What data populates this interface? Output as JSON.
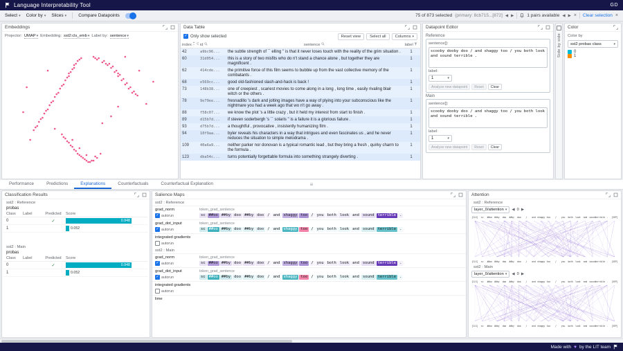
{
  "header": {
    "title": "Language Interpretability Tool",
    "user": "GD"
  },
  "toolbar": {
    "select": "Select",
    "color_by": "Color by",
    "slices": "Slices",
    "compare": "Compare Datapoints",
    "selected_status": "75 of 873 selected",
    "primary_status": "(primary: 8cb715...[872]",
    "pairs_status": "1 pairs available",
    "clear_selection": "Clear selection"
  },
  "embeddings": {
    "title": "Embeddings",
    "projector_label": "Projector:",
    "projector": "UMAP",
    "embedding_label": "Embedding:",
    "embedding": "sst2:cls_emb",
    "label_by_label": "Label by:",
    "label_by": "sentence",
    "point_color": "#e91e63",
    "points": [
      [
        44,
        14
      ],
      [
        42,
        17
      ],
      [
        41,
        20
      ],
      [
        39,
        23
      ],
      [
        38,
        26
      ],
      [
        36,
        29
      ],
      [
        35,
        32
      ],
      [
        33,
        35
      ],
      [
        32,
        38
      ],
      [
        30,
        41
      ],
      [
        29,
        44
      ],
      [
        27,
        47
      ],
      [
        26,
        50
      ],
      [
        24,
        53
      ],
      [
        23,
        56
      ],
      [
        21,
        59
      ],
      [
        20,
        62
      ],
      [
        18,
        65
      ],
      [
        43,
        15
      ],
      [
        40,
        21
      ],
      [
        37,
        27
      ],
      [
        34,
        33
      ],
      [
        31,
        39
      ],
      [
        28,
        45
      ],
      [
        25,
        51
      ],
      [
        22,
        57
      ],
      [
        19,
        63
      ],
      [
        45,
        13
      ],
      [
        41,
        18
      ],
      [
        38,
        24
      ],
      [
        52,
        12
      ],
      [
        55,
        13
      ],
      [
        58,
        15
      ],
      [
        61,
        17
      ],
      [
        63,
        19
      ],
      [
        65,
        22
      ],
      [
        67,
        25
      ],
      [
        69,
        28
      ],
      [
        71,
        31
      ],
      [
        73,
        34
      ],
      [
        75,
        37
      ],
      [
        77,
        40
      ],
      [
        54,
        14
      ],
      [
        57,
        16
      ],
      [
        60,
        18
      ],
      [
        62,
        20
      ],
      [
        64,
        23
      ],
      [
        66,
        26
      ],
      [
        68,
        29
      ],
      [
        70,
        32
      ],
      [
        72,
        35
      ],
      [
        74,
        38
      ],
      [
        53,
        13
      ],
      [
        59,
        17
      ],
      [
        76,
        39
      ],
      [
        66,
        24
      ],
      [
        34,
        68
      ],
      [
        36,
        71
      ],
      [
        38,
        74
      ],
      [
        40,
        77
      ],
      [
        42,
        80
      ],
      [
        44,
        83
      ],
      [
        46,
        85
      ],
      [
        48,
        87
      ],
      [
        50,
        88
      ],
      [
        52,
        87
      ],
      [
        54,
        85
      ],
      [
        56,
        82
      ],
      [
        35,
        70
      ],
      [
        37,
        73
      ],
      [
        39,
        76
      ],
      [
        41,
        79
      ],
      [
        43,
        82
      ],
      [
        45,
        84
      ],
      [
        47,
        86
      ],
      [
        49,
        88
      ],
      [
        51,
        87
      ],
      [
        53,
        84
      ],
      [
        40,
        72
      ],
      [
        44,
        78
      ],
      [
        48,
        83
      ],
      [
        14,
        34
      ],
      [
        16,
        72
      ],
      [
        82,
        46
      ],
      [
        62,
        55
      ],
      [
        26,
        22
      ],
      [
        70,
        12
      ],
      [
        12,
        52
      ],
      [
        57,
        60
      ],
      [
        30,
        64
      ],
      [
        66,
        48
      ],
      [
        78,
        22
      ],
      [
        86,
        30
      ]
    ]
  },
  "data_table": {
    "title": "Data Table",
    "only_show_selected": "Only show selected",
    "reset_view": "Reset view",
    "select_all": "Select all",
    "columns": "Columns",
    "headers": [
      "index",
      "id",
      "sentence",
      "label"
    ],
    "rows": [
      [
        "42",
        "a9bc96...",
        "the subtle strength of `` elling '' is that it never loses touch with the reality of the grim situation .",
        "1"
      ],
      [
        "60",
        "31d054...",
        "this is a story of two misfits who do n't stand a chance alone , but together they are magnificent .",
        "1"
      ],
      [
        "62",
        "414cde...",
        "the primitive force of this film seems to bubble up from the vast collective memory of the combatants .",
        "1"
      ],
      [
        "68",
        "e569cc...",
        "good old-fashioned slash-and-hack is back !",
        "1"
      ],
      [
        "73",
        "148b38...",
        "one of creepiest , scariest movies to come along in a long , long time , easily rivaling blair witch or the others .",
        "1"
      ],
      [
        "78",
        "9e79ee...",
        "fresnadillo 's dark and jolting images have a way of plying into your subconscious like the nightmare you had a week ago that wo n't go away .",
        "1"
      ],
      [
        "88",
        "f58c07...",
        "we know the plot 's a little crazy , but it held my interest from start to finish .",
        "1"
      ],
      [
        "89",
        "d15b7d...",
        "if steven soderbergh 's `` solaris '' is a failure it is a glorious failure .",
        "1"
      ],
      [
        "93",
        "d75b7d...",
        "a thoughtful , provocative , insistently humanizing film .",
        "1"
      ],
      [
        "94",
        "10f9aa...",
        "byler reveals his characters in a way that intrigues and even fascinates us , and he never reduces the situation to simple melodrama .",
        "1"
      ],
      [
        "109",
        "40a6a9...",
        "neither parker nor donovan is a typical romantic lead , but they bring a fresh , quirky charm to the formula .",
        "1"
      ],
      [
        "123",
        "dba54c...",
        "turns potentially forgettable formula into something strangely diverting .",
        "1"
      ]
    ]
  },
  "datapoint_editor": {
    "title": "Datapoint Editor",
    "sections": [
      {
        "name": "Reference",
        "sentence_label": "sentence[]:",
        "sentence": "scooby dooby doo / and shaggy too / you both look and sound terrible .",
        "label_label": "label:",
        "label_value": "1",
        "buttons": [
          "Analyze new datapoint",
          "Reset",
          "Clear"
        ]
      },
      {
        "name": "Main",
        "sentence_label": "sentence[]:",
        "sentence": "scooby dooby doo / and shaggy too / you both look and sound terrible .",
        "label_label": "label:",
        "label_value": "1",
        "buttons": [
          "Analyze new datapoint",
          "Reset",
          "Clear"
        ]
      }
    ]
  },
  "side_by_side": {
    "label": "Side by side"
  },
  "color_panel": {
    "title": "Color",
    "color_by_label": "Color by",
    "color_by_value": "sst2 probas class",
    "legend": [
      {
        "label": "0",
        "color": "#00bcd4"
      },
      {
        "label": "1",
        "color": "#fb8c00"
      }
    ]
  },
  "tabs": {
    "items": [
      "Performance",
      "Predictions",
      "Explanations",
      "Counterfactuals",
      "Counterfactual Explanation"
    ],
    "active": "Explanations"
  },
  "classification": {
    "title": "Classification Results",
    "bar_color": "#00acc1",
    "sections": [
      {
        "model": "sst2 : Reference",
        "field": "probas",
        "headers": [
          "Class",
          "Label",
          "Predicted",
          "Score"
        ],
        "rows": [
          {
            "cls": "0",
            "label": "",
            "predicted": true,
            "score": "0.948"
          },
          {
            "cls": "1",
            "label": "",
            "predicted": false,
            "score": "0.052"
          }
        ]
      },
      {
        "model": "sst2 : Main",
        "field": "probas",
        "headers": [
          "Class",
          "Label",
          "Predicted",
          "Score"
        ],
        "rows": [
          {
            "cls": "0",
            "label": "",
            "predicted": true,
            "score": "0.948"
          },
          {
            "cls": "1",
            "label": "",
            "predicted": false,
            "score": "0.052"
          }
        ]
      }
    ]
  },
  "salience": {
    "title": "Salience Maps",
    "autorun_label": "autorun",
    "tokens": [
      "sc",
      "##oo",
      "##by",
      "doo",
      "##by",
      "doo",
      "/",
      "and",
      "shaggy",
      "too",
      "/",
      "you",
      "both",
      "look",
      "and",
      "sound",
      "terrible",
      "."
    ],
    "sections": [
      {
        "model": "sst2 : Reference",
        "rows": [
          {
            "method": "grad_norm",
            "field": "token_grad_sentence",
            "autorun": true,
            "cmap": "purple",
            "weights": [
              0.15,
              0.5,
              0.2,
              0.12,
              0.15,
              0.12,
              0.05,
              0.06,
              0.4,
              0.55,
              0.05,
              0.08,
              0.08,
              0.1,
              0.06,
              0.16,
              1.0,
              0.08
            ]
          },
          {
            "method": "grad_dot_input",
            "field": "token_grad_sentence",
            "autorun": true,
            "cmap": "signed",
            "weights": [
              0.18,
              0.75,
              0.2,
              0.1,
              0.12,
              0.1,
              0.03,
              0.05,
              0.7,
              -0.55,
              0.03,
              0.05,
              0.05,
              0.08,
              0.05,
              0.15,
              0.6,
              0.05
            ]
          },
          {
            "method": "integrated gradients",
            "field": "",
            "autorun": false,
            "cmap": "purple",
            "weights": []
          }
        ]
      },
      {
        "model": "sst2 : Main",
        "rows": [
          {
            "method": "grad_norm",
            "field": "token_grad_sentence",
            "autorun": true,
            "cmap": "purple",
            "weights": [
              0.15,
              0.5,
              0.2,
              0.12,
              0.15,
              0.12,
              0.05,
              0.06,
              0.4,
              0.55,
              0.05,
              0.08,
              0.08,
              0.1,
              0.06,
              0.16,
              1.0,
              0.08
            ]
          },
          {
            "method": "grad_dot_input",
            "field": "token_grad_sentence",
            "autorun": true,
            "cmap": "signed",
            "weights": [
              0.18,
              0.75,
              0.2,
              0.1,
              0.12,
              0.1,
              0.03,
              0.05,
              0.7,
              -0.55,
              0.03,
              0.05,
              0.05,
              0.08,
              0.05,
              0.15,
              0.6,
              0.05
            ]
          },
          {
            "method": "integrated gradients",
            "field": "",
            "autorun": false,
            "cmap": "purple",
            "weights": []
          }
        ]
      }
    ],
    "trailing_method": "lime"
  },
  "attention": {
    "title": "Attention",
    "line_color": "#6c3fc9",
    "tokens": [
      "[CLS]",
      "sc",
      "##oo",
      "##by",
      "doo",
      "##by",
      "doo",
      "/",
      "and",
      "shaggy",
      "too",
      "/",
      "you",
      "both",
      "look",
      "and",
      "sound",
      "terrible",
      ".",
      "[SEP]"
    ],
    "sections": [
      {
        "model": "sst2 : Reference",
        "layer_label": "layer_0/attention",
        "head_index": "0"
      },
      {
        "model": "sst2 : Main",
        "layer_label": "layer_0/attention",
        "head_index": "0"
      }
    ]
  },
  "footer": {
    "prefix": "Made with",
    "heart": "♥",
    "suffix": "by the LIT team"
  }
}
